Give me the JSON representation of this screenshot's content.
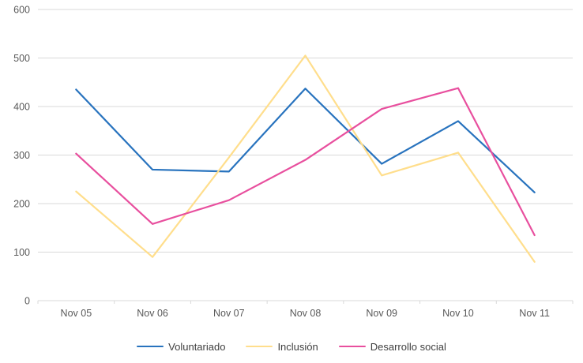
{
  "chart_data": {
    "type": "line",
    "categories": [
      "Nov 05",
      "Nov 06",
      "Nov 07",
      "Nov 08",
      "Nov 09",
      "Nov 10",
      "Nov 11"
    ],
    "series": [
      {
        "name": "Voluntariado",
        "color": "#2873BE",
        "values": [
          435,
          270,
          266,
          437,
          282,
          370,
          223
        ]
      },
      {
        "name": "Inclusión",
        "color": "#FFDE8C",
        "values": [
          225,
          90,
          295,
          505,
          258,
          305,
          80
        ]
      },
      {
        "name": "Desarrollo social",
        "color": "#E84F9E",
        "values": [
          303,
          158,
          207,
          290,
          395,
          438,
          135
        ]
      }
    ],
    "ylim": [
      0,
      600
    ],
    "ytick_step": 100,
    "grid": true,
    "legend_position": "bottom",
    "axis_color": "#D9D9D9",
    "label_color": "#595959",
    "legend_text_color": "#3F3F3F",
    "line_width": 2.2
  }
}
